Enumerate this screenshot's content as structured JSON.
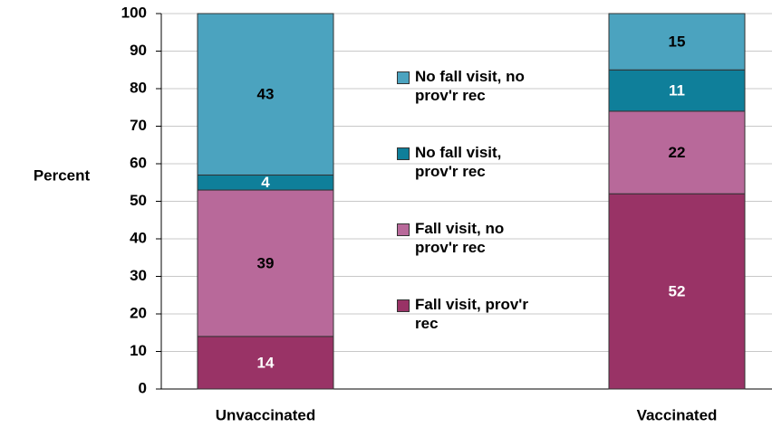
{
  "chart_data": {
    "type": "stacked_bar",
    "y_label": "Percent",
    "categories": [
      "Unvaccinated",
      "Vaccinated"
    ],
    "series": [
      {
        "name": "Fall visit, prov'r rec",
        "color": "#993366",
        "label_color": "#ffffff",
        "values": [
          14,
          52
        ]
      },
      {
        "name": "Fall visit, no prov'r rec",
        "color": "#b8699a",
        "label_color": "#000000",
        "values": [
          39,
          22
        ]
      },
      {
        "name": "No fall visit, prov'r rec",
        "color": "#0f7f9a",
        "label_color": "#ffffff",
        "values": [
          4,
          11
        ]
      },
      {
        "name": "No fall visit, no prov'r rec",
        "color": "#4ba3bf",
        "label_color": "#000000",
        "values": [
          43,
          15
        ]
      }
    ],
    "ylim": [
      0,
      100
    ],
    "yticks": [
      0,
      10,
      20,
      30,
      40,
      50,
      60,
      70,
      80,
      90,
      100
    ],
    "grid": true
  }
}
